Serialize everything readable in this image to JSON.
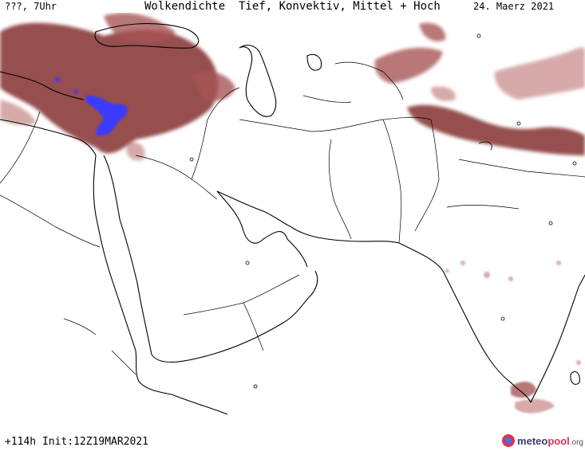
{
  "header": {
    "left": "???, 7Uhr",
    "title": "Wolkendichte  Tief, Konvektiv, Mittel + Hoch",
    "date": "24. Maerz 2021"
  },
  "footer": {
    "run": "+114h Init:12Z19MAR2021"
  },
  "logo": {
    "name_main": "meteo",
    "name_accent": "pool",
    "tld": ".org"
  },
  "colors": {
    "cloud_dense": "#8b3a3a",
    "cloud_medium": "#a85555",
    "cloud_light": "#c98d8d",
    "cloud_core": "#3a3aff",
    "coast": "#000000",
    "border": "#000000",
    "background": "#ffffff"
  }
}
